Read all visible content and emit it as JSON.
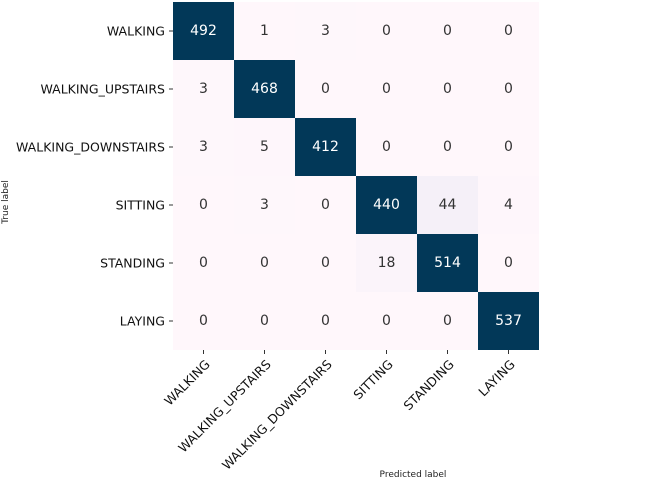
{
  "chart_data": {
    "type": "heatmap",
    "title": "",
    "xlabel": "Predicted label",
    "ylabel": "True label",
    "row_labels": [
      "WALKING",
      "WALKING_UPSTAIRS",
      "WALKING_DOWNSTAIRS",
      "SITTING",
      "STANDING",
      "LAYING"
    ],
    "col_labels": [
      "WALKING",
      "WALKING_UPSTAIRS",
      "WALKING_DOWNSTAIRS",
      "SITTING",
      "STANDING",
      "LAYING"
    ],
    "matrix": [
      [
        492,
        1,
        3,
        0,
        0,
        0
      ],
      [
        3,
        468,
        0,
        0,
        0,
        0
      ],
      [
        3,
        5,
        412,
        0,
        0,
        0
      ],
      [
        0,
        3,
        0,
        440,
        44,
        4
      ],
      [
        0,
        0,
        0,
        18,
        514,
        0
      ],
      [
        0,
        0,
        0,
        0,
        0,
        537
      ]
    ],
    "colormap": "PuBu",
    "value_range": [
      0,
      537
    ],
    "colorbar": false,
    "colors": {
      "low": "#fff7fb",
      "mid_low": "#d0d1e6",
      "mid": "#74a9cf",
      "high": "#023858",
      "text_dark": "#333333",
      "text_light": "#ffffff"
    }
  }
}
